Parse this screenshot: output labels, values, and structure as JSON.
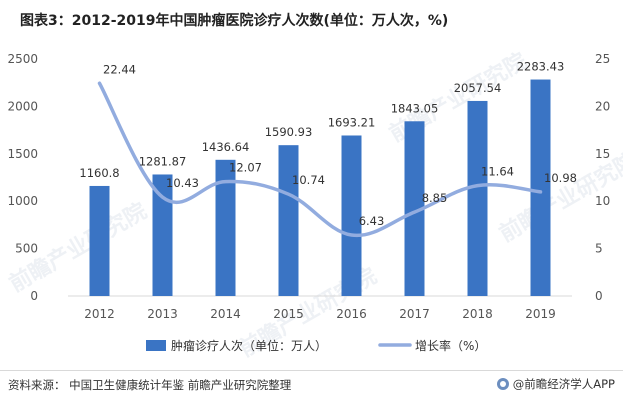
{
  "title": "图表3：2012-2019年中国肿瘤医院诊疗人次数(单位：万人次，%)",
  "footer": {
    "source": "资料来源：  中国卫生健康统计年鉴 前瞻产业研究院整理",
    "brand": "@前瞻经济学人APP"
  },
  "watermark": "前瞻产业研究院",
  "chart_data": {
    "type": "bar",
    "categories": [
      "2012",
      "2013",
      "2014",
      "2015",
      "2016",
      "2017",
      "2018",
      "2019"
    ],
    "series": [
      {
        "name": "肿瘤诊疗人次（单位：万人）",
        "type": "bar",
        "axis": "left",
        "color": "#3a74c4",
        "values": [
          1160.8,
          1281.87,
          1436.64,
          1590.93,
          1693.21,
          1843.05,
          2057.54,
          2283.43
        ],
        "labels": [
          "1160.8",
          "1281.87",
          "1436.64",
          "1590.93",
          "1693.21",
          "1843.05",
          "2057.54",
          "2283.43"
        ]
      },
      {
        "name": "增长率（%）",
        "type": "line",
        "axis": "right",
        "color": "#92acdf",
        "values": [
          22.44,
          10.43,
          12.07,
          10.74,
          6.43,
          8.85,
          11.64,
          10.98
        ],
        "labels": [
          "22.44",
          "10.43",
          "12.07",
          "10.74",
          "6.43",
          "8.85",
          "11.64",
          "10.98"
        ]
      }
    ],
    "y_left": {
      "min": 0,
      "max": 2500,
      "ticks": [
        "0",
        "500",
        "1000",
        "1500",
        "2000",
        "2500"
      ]
    },
    "y_right": {
      "min": 0,
      "max": 25,
      "ticks": [
        "0",
        "5",
        "10",
        "15",
        "20",
        "25"
      ]
    },
    "grid": false,
    "legend": "bottom"
  }
}
